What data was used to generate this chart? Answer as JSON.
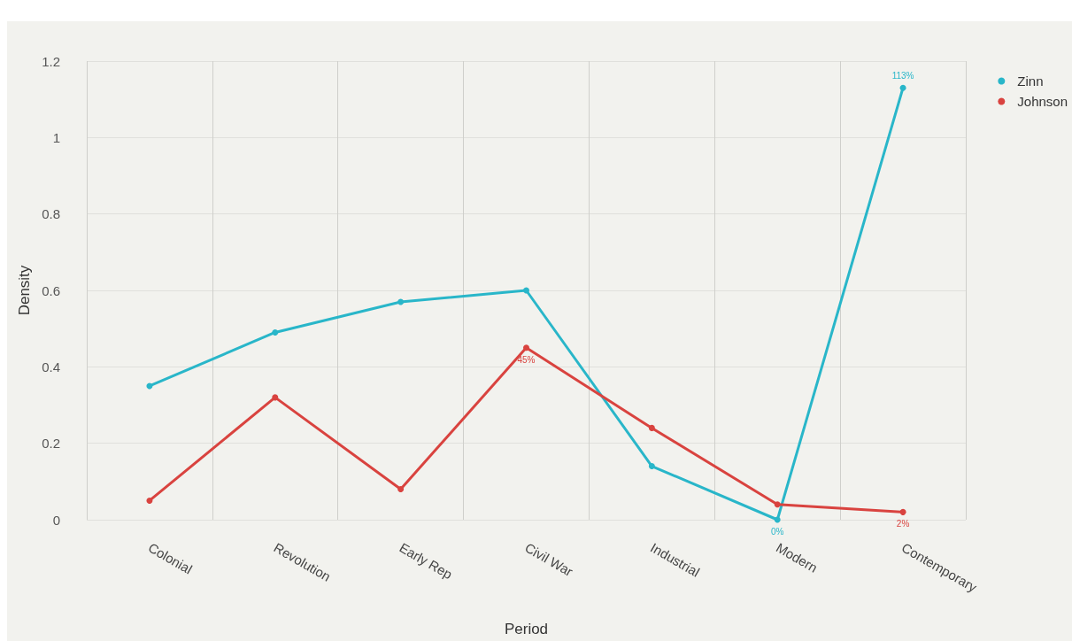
{
  "chart_data": {
    "type": "line",
    "xlabel": "Period",
    "ylabel": "Density",
    "categories": [
      "Colonial",
      "Revolution",
      "Early Rep",
      "Civil War",
      "Industrial",
      "Modern",
      "Contemporary"
    ],
    "series": [
      {
        "name": "Zinn",
        "color": "#29b6c9",
        "values": [
          0.35,
          0.49,
          0.57,
          0.6,
          0.14,
          0,
          1.13
        ],
        "value_labels": [
          null,
          null,
          null,
          null,
          null,
          "0%",
          "113%"
        ]
      },
      {
        "name": "Johnson",
        "color": "#d9433f",
        "values": [
          0.05,
          0.32,
          0.08,
          0.45,
          0.24,
          0.04,
          0.02
        ],
        "value_labels": [
          null,
          null,
          null,
          "45%",
          null,
          null,
          "2%"
        ]
      }
    ],
    "ylim": [
      0,
      1.2
    ],
    "yticks": [
      0,
      0.2,
      0.4,
      0.6,
      0.8,
      1,
      1.2
    ],
    "grid": true,
    "legend": "top right",
    "marker": "circle",
    "line_style": "solid"
  }
}
